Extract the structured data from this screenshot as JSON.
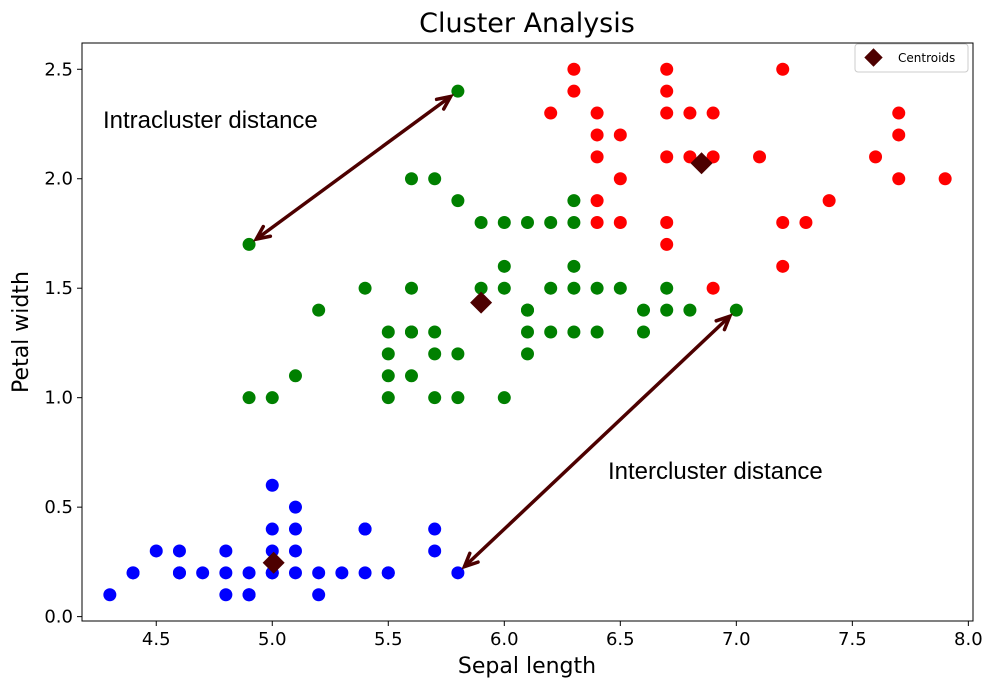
{
  "chart_data": {
    "type": "scatter",
    "title": "Cluster Analysis",
    "xlabel": "Sepal length",
    "ylabel": "Petal width",
    "xlim": [
      4.18,
      8.02
    ],
    "ylim": [
      -0.02,
      2.62
    ],
    "xticks": [
      "4.5",
      "5.0",
      "5.5",
      "6.0",
      "6.5",
      "7.0",
      "7.5",
      "8.0"
    ],
    "yticks": [
      "0.0",
      "0.5",
      "1.0",
      "1.5",
      "2.0",
      "2.5"
    ],
    "grid": false,
    "legend": {
      "placement": "top-right",
      "entries": [
        "Centroids"
      ]
    },
    "colors": {
      "cluster_blue": "#0000ff",
      "cluster_green": "#008000",
      "cluster_red": "#ff0000",
      "centroid": "#4d0000",
      "arrow": "#4d0000"
    },
    "series": [
      {
        "color": "#0000ff",
        "points": [
          [
            4.3,
            0.1
          ],
          [
            4.4,
            0.2
          ],
          [
            4.4,
            0.2
          ],
          [
            4.5,
            0.3
          ],
          [
            4.6,
            0.3
          ],
          [
            4.6,
            0.2
          ],
          [
            4.6,
            0.2
          ],
          [
            4.7,
            0.2
          ],
          [
            4.8,
            0.3
          ],
          [
            4.8,
            0.2
          ],
          [
            4.8,
            0.1
          ],
          [
            4.9,
            0.2
          ],
          [
            4.9,
            0.1
          ],
          [
            4.9,
            0.1
          ],
          [
            5.0,
            0.6
          ],
          [
            5.0,
            0.4
          ],
          [
            5.0,
            0.3
          ],
          [
            5.0,
            0.2
          ],
          [
            5.0,
            0.2
          ],
          [
            5.1,
            0.5
          ],
          [
            5.1,
            0.4
          ],
          [
            5.1,
            0.3
          ],
          [
            5.1,
            0.2
          ],
          [
            5.2,
            0.2
          ],
          [
            5.2,
            0.1
          ],
          [
            5.3,
            0.2
          ],
          [
            5.4,
            0.4
          ],
          [
            5.4,
            0.4
          ],
          [
            5.4,
            0.2
          ],
          [
            5.5,
            0.2
          ],
          [
            5.5,
            0.2
          ],
          [
            5.7,
            0.4
          ],
          [
            5.7,
            0.3
          ],
          [
            5.8,
            0.2
          ]
        ]
      },
      {
        "color": "#008000",
        "points": [
          [
            4.9,
            1.7
          ],
          [
            4.9,
            1.0
          ],
          [
            5.0,
            1.0
          ],
          [
            5.1,
            1.1
          ],
          [
            5.2,
            1.4
          ],
          [
            5.4,
            1.5
          ],
          [
            5.5,
            1.3
          ],
          [
            5.5,
            1.2
          ],
          [
            5.5,
            1.1
          ],
          [
            5.5,
            1.0
          ],
          [
            5.6,
            2.0
          ],
          [
            5.6,
            1.5
          ],
          [
            5.6,
            1.3
          ],
          [
            5.6,
            1.1
          ],
          [
            5.6,
            1.3
          ],
          [
            5.7,
            2.0
          ],
          [
            5.7,
            1.3
          ],
          [
            5.7,
            1.2
          ],
          [
            5.7,
            1.0
          ],
          [
            5.8,
            2.4
          ],
          [
            5.8,
            1.9
          ],
          [
            5.8,
            1.2
          ],
          [
            5.8,
            1.0
          ],
          [
            5.9,
            1.8
          ],
          [
            5.9,
            1.5
          ],
          [
            6.0,
            1.8
          ],
          [
            6.0,
            1.6
          ],
          [
            6.0,
            1.5
          ],
          [
            6.0,
            1.0
          ],
          [
            6.1,
            1.8
          ],
          [
            6.1,
            1.4
          ],
          [
            6.1,
            1.4
          ],
          [
            6.1,
            1.3
          ],
          [
            6.1,
            1.2
          ],
          [
            6.2,
            1.8
          ],
          [
            6.2,
            1.5
          ],
          [
            6.2,
            1.3
          ],
          [
            6.3,
            1.9
          ],
          [
            6.3,
            1.8
          ],
          [
            6.3,
            1.6
          ],
          [
            6.3,
            1.5
          ],
          [
            6.3,
            1.3
          ],
          [
            6.4,
            1.5
          ],
          [
            6.4,
            1.3
          ],
          [
            6.5,
            1.5
          ],
          [
            6.6,
            1.4
          ],
          [
            6.6,
            1.3
          ],
          [
            6.7,
            1.5
          ],
          [
            6.7,
            1.4
          ],
          [
            6.8,
            1.4
          ],
          [
            7.0,
            1.4
          ]
        ]
      },
      {
        "color": "#ff0000",
        "points": [
          [
            6.2,
            2.3
          ],
          [
            6.3,
            2.5
          ],
          [
            6.3,
            2.4
          ],
          [
            6.4,
            2.3
          ],
          [
            6.4,
            2.2
          ],
          [
            6.4,
            2.1
          ],
          [
            6.4,
            1.9
          ],
          [
            6.4,
            1.8
          ],
          [
            6.5,
            2.2
          ],
          [
            6.5,
            2.0
          ],
          [
            6.5,
            1.8
          ],
          [
            6.7,
            2.5
          ],
          [
            6.7,
            2.4
          ],
          [
            6.7,
            2.3
          ],
          [
            6.7,
            2.1
          ],
          [
            6.7,
            1.8
          ],
          [
            6.7,
            1.7
          ],
          [
            6.8,
            2.3
          ],
          [
            6.8,
            2.1
          ],
          [
            6.9,
            2.3
          ],
          [
            6.9,
            2.1
          ],
          [
            6.9,
            1.5
          ],
          [
            7.1,
            2.1
          ],
          [
            7.2,
            2.5
          ],
          [
            7.2,
            1.8
          ],
          [
            7.2,
            1.6
          ],
          [
            7.3,
            1.8
          ],
          [
            7.4,
            1.9
          ],
          [
            7.6,
            2.1
          ],
          [
            7.7,
            2.3
          ],
          [
            7.7,
            2.2
          ],
          [
            7.7,
            2.0
          ],
          [
            7.9,
            2.0
          ]
        ]
      }
    ],
    "centroids": [
      [
        5.006,
        0.246
      ],
      [
        5.9,
        1.434
      ],
      [
        6.85,
        2.071
      ]
    ],
    "annotations": [
      {
        "text": "Intracluster distance",
        "x": 4.23,
        "y": 2.23
      },
      {
        "text": "Intercluster distance",
        "x": 6.45,
        "y": 0.62
      }
    ],
    "arrows": [
      {
        "from": [
          4.9,
          1.7
        ],
        "to": [
          5.8,
          2.4
        ]
      },
      {
        "from": [
          5.8,
          0.2
        ],
        "to": [
          7.0,
          1.4
        ]
      }
    ]
  }
}
